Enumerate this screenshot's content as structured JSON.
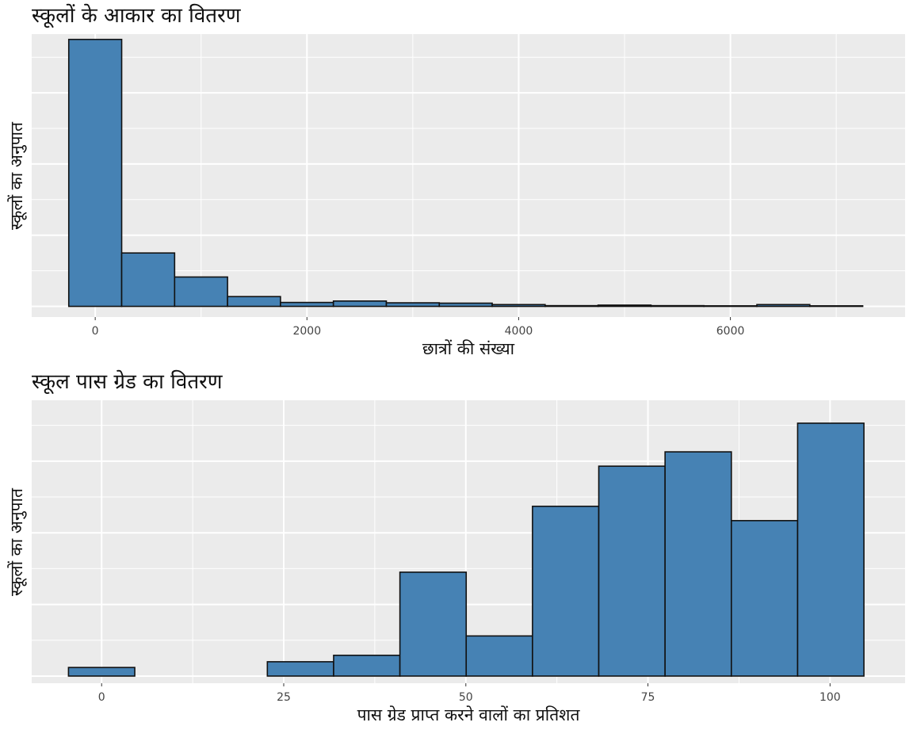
{
  "chart_data": [
    {
      "type": "bar",
      "title": "स्कूलों के आकार का वितरण",
      "xlabel": "छात्रों की संख्या",
      "ylabel": "स्कूलों का अनुपात",
      "xlim": [
        -600,
        7650
      ],
      "ylim": [
        -0.0006,
        0.0153
      ],
      "x_ticks": [
        0,
        2000,
        4000,
        6000
      ],
      "x_tick_labels": [
        "0",
        "2000",
        "4000",
        "6000"
      ],
      "y_major_breaks": [
        0,
        0.004,
        0.008,
        0.012
      ],
      "y_tick_labels_shown": false,
      "grid": true,
      "bin_width": 500,
      "bins": [
        {
          "x0": -250,
          "x1": 250,
          "value": 0.015
        },
        {
          "x0": 250,
          "x1": 750,
          "value": 0.003
        },
        {
          "x0": 750,
          "x1": 1250,
          "value": 0.00165
        },
        {
          "x0": 1250,
          "x1": 1750,
          "value": 0.00055
        },
        {
          "x0": 1750,
          "x1": 2250,
          "value": 0.00022
        },
        {
          "x0": 2250,
          "x1": 2750,
          "value": 0.0003
        },
        {
          "x0": 2750,
          "x1": 3250,
          "value": 0.0002
        },
        {
          "x0": 3250,
          "x1": 3750,
          "value": 0.00018
        },
        {
          "x0": 3750,
          "x1": 4250,
          "value": 0.0001
        },
        {
          "x0": 4250,
          "x1": 4750,
          "value": 4e-05
        },
        {
          "x0": 4750,
          "x1": 5250,
          "value": 7e-05
        },
        {
          "x0": 5250,
          "x1": 5750,
          "value": 4e-05
        },
        {
          "x0": 5750,
          "x1": 6250,
          "value": 3e-05
        },
        {
          "x0": 6250,
          "x1": 6750,
          "value": 0.0001
        },
        {
          "x0": 6750,
          "x1": 7250,
          "value": 3e-05
        }
      ],
      "colors": {
        "fill": "#4682b4",
        "stroke": "#111111",
        "panel": "#ebebeb",
        "grid": "#ffffff"
      }
    },
    {
      "type": "bar",
      "title": "स्कूल पास ग्रेड का वितरण",
      "xlabel": "पास ग्रेड प्राप्त करने वालों का प्रतिशत",
      "ylabel": "स्कूलों का अनुपात",
      "xlim": [
        -9.6,
        110.3
      ],
      "ylim": [
        -0.001,
        0.0385
      ],
      "x_ticks": [
        0,
        25,
        50,
        75,
        100
      ],
      "x_tick_labels": [
        "0",
        "25",
        "50",
        "75",
        "100"
      ],
      "y_major_breaks": [
        0,
        0.01,
        0.02,
        0.03
      ],
      "y_tick_labels_shown": false,
      "grid": true,
      "bin_width": 9.1,
      "bins": [
        {
          "x0": -4.55,
          "x1": 4.55,
          "value": 0.0012
        },
        {
          "x0": 4.55,
          "x1": 13.65,
          "value": 0.0
        },
        {
          "x0": 13.65,
          "x1": 22.75,
          "value": 0.0
        },
        {
          "x0": 22.75,
          "x1": 31.85,
          "value": 0.002
        },
        {
          "x0": 31.85,
          "x1": 40.95,
          "value": 0.0029
        },
        {
          "x0": 40.95,
          "x1": 50.05,
          "value": 0.0145
        },
        {
          "x0": 50.05,
          "x1": 59.15,
          "value": 0.0056
        },
        {
          "x0": 59.15,
          "x1": 68.25,
          "value": 0.0237
        },
        {
          "x0": 68.25,
          "x1": 77.35,
          "value": 0.0293
        },
        {
          "x0": 77.35,
          "x1": 86.45,
          "value": 0.0313
        },
        {
          "x0": 86.45,
          "x1": 95.55,
          "value": 0.0217
        },
        {
          "x0": 95.55,
          "x1": 104.65,
          "value": 0.0353
        }
      ],
      "colors": {
        "fill": "#4682b4",
        "stroke": "#111111",
        "panel": "#ebebeb",
        "grid": "#ffffff"
      }
    }
  ]
}
